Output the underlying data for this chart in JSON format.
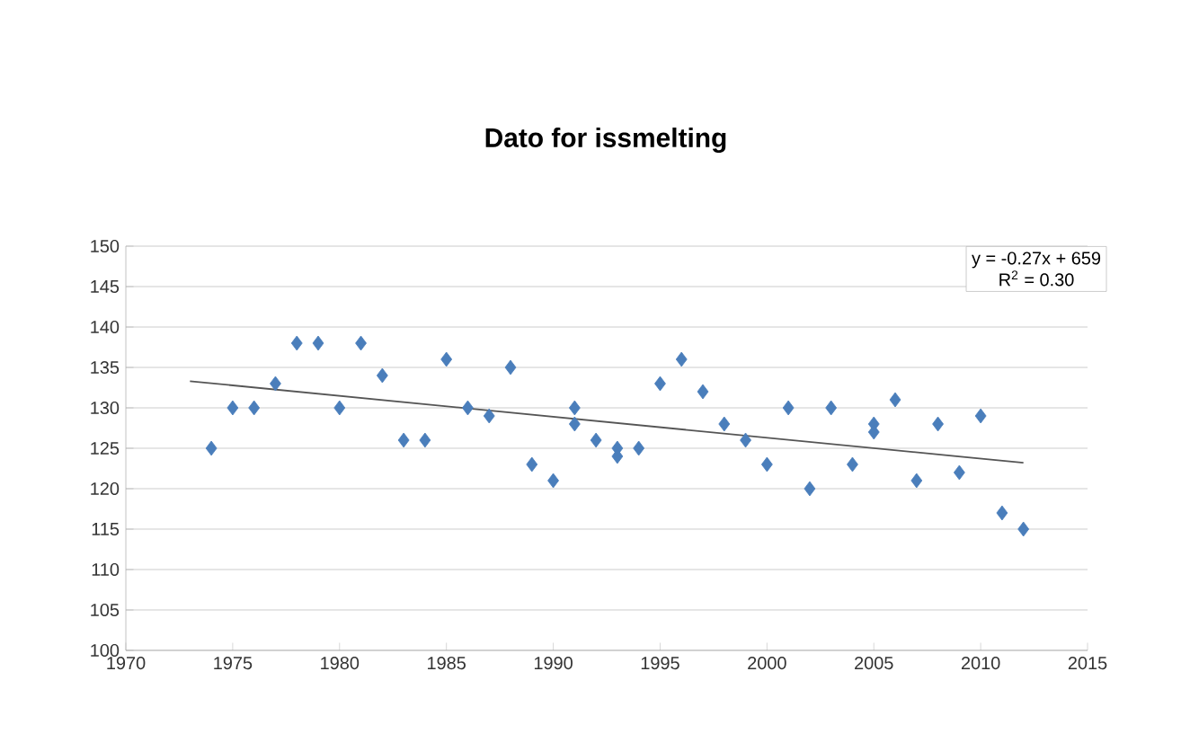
{
  "chart_data": {
    "type": "scatter",
    "title": "Dato for issmelting",
    "series": [
      {
        "color": "#4a7ebb",
        "marker": "diamond",
        "x": [
          1974,
          1975,
          1976,
          1977,
          1978,
          1979,
          1980,
          1981,
          1982,
          1983,
          1984,
          1985,
          1986,
          1987,
          1988,
          1989,
          1990,
          1991,
          1991,
          1992,
          1993,
          1993,
          1994,
          1995,
          1996,
          1997,
          1998,
          1999,
          2000,
          2001,
          2002,
          2003,
          2004,
          2005,
          2005,
          2006,
          2007,
          2008,
          2009,
          2010,
          2011,
          2012
        ],
        "values": [
          125,
          130,
          130,
          133,
          138,
          138,
          130,
          138,
          134,
          126,
          126,
          136,
          130,
          129,
          135,
          123,
          121,
          130,
          128,
          126,
          125,
          124,
          125,
          133,
          136,
          132,
          128,
          126,
          123,
          130,
          120,
          130,
          123,
          128,
          127,
          131,
          121,
          128,
          122,
          129,
          117,
          115
        ]
      },
      {
        "type": "line",
        "color": "#555555",
        "marker": "none",
        "line_style": "solid",
        "x": [
          1973,
          2012
        ],
        "values": [
          133.3,
          123.2
        ]
      }
    ],
    "annotations": [
      "y = -0.27x + 659",
      "R$^{2}$ = 0.30"
    ],
    "xlim": [
      1970,
      2015
    ],
    "xticks": [
      1970,
      1975,
      1980,
      1985,
      1990,
      1995,
      2000,
      2005,
      2010,
      2015
    ],
    "ylim": [
      100,
      150
    ],
    "yticks": [
      100,
      105,
      110,
      115,
      120,
      125,
      130,
      135,
      140,
      145,
      150
    ],
    "grid": "y"
  }
}
